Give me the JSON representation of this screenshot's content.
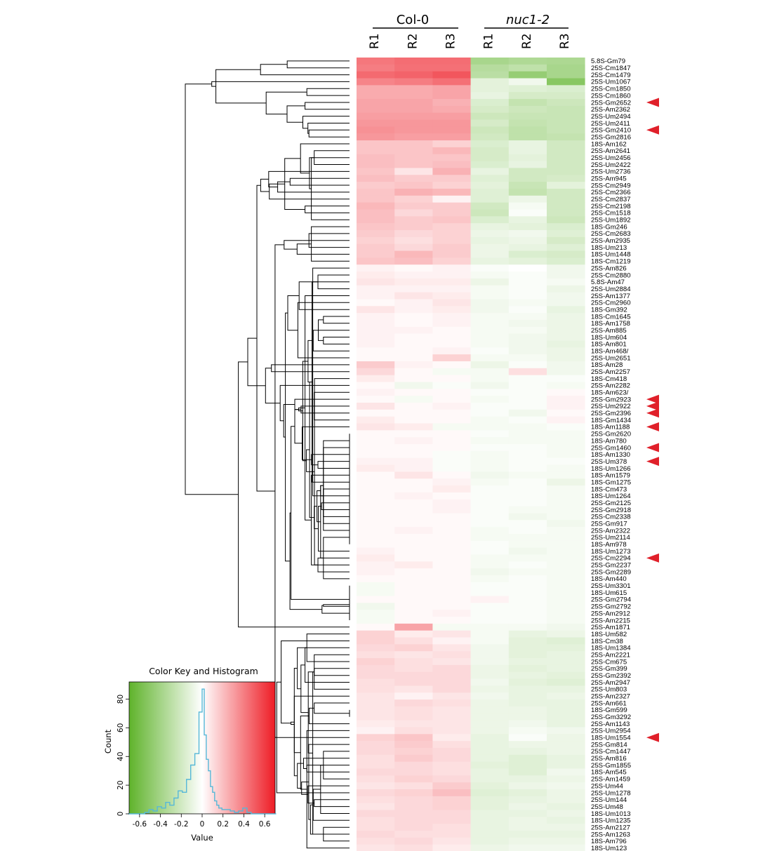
{
  "chart_data": {
    "type": "heatmap",
    "groups": [
      {
        "name": "Col-0",
        "italic": false
      },
      {
        "name": "nuc1-2",
        "italic": true
      }
    ],
    "columns": [
      "R1",
      "R2",
      "R3",
      "R1",
      "R2",
      "R3"
    ],
    "rows": [
      "5.8S-Gm79",
      "25S-Cm1847",
      "25S-Cm1479",
      "25S-Um1067",
      "25S-Cm1850",
      "25S-Cm1860",
      "25S-Gm2652",
      "25S-Am2362",
      "25S-Um2494",
      "25S-Um2411",
      "25S-Gm2410",
      "25S-Gm2816",
      "18S-Am162",
      "25S-Am2641",
      "25S-Um2456",
      "25S-Um2422",
      "25S-Um2736",
      "25S-Am945",
      "25S-Cm2949",
      "25S-Cm2366",
      "25S-Cm2837",
      "25S-Cm2198",
      "25S-Cm1518",
      "25S-Um1892",
      "18S-Gm246",
      "25S-Cm2683",
      "25S-Am2935",
      "18S-Um213",
      "18S-Um1448",
      "18S-Cm1219",
      "25S-Am826",
      "25S-Cm2880",
      "5.8S-Am47",
      "25S-Um2884",
      "25S-Am1377",
      "25S-Cm2960",
      "18S-Gm392",
      "18S-Cm1645",
      "18S-Am1758",
      "25S-Am885",
      "18S-Um604",
      "18S-Am801",
      "18S-Am468/",
      "25S-Um2651",
      "18S-Am28",
      "25S-Am2257",
      "18S-Cm418",
      "25S-Am2282",
      "18S-Am623/",
      "25S-Gm2923",
      "25S-Um2922",
      "25S-Gm2396",
      "18S-Gm1434",
      "18S-Am1188",
      "25S-Gm2620",
      "18S-Am780",
      "25S-Gm1460",
      "18S-Am1330",
      "25S-Um378",
      "18S-Um1266",
      "18S-Am1579",
      "18S-Gm1275",
      "18S-Cm473",
      "18S-Um1264",
      "25S-Gm2125",
      "25S-Gm2918",
      "25S-Cm2338",
      "25S-Gm917",
      "25S-Am2322",
      "25S-Um2114",
      "18S-Am978",
      "18S-Um1273",
      "25S-Cm2294",
      "25S-Gm2237",
      "25S-Gm2289",
      "18S-Am440",
      "25S-Um3301",
      "18S-Um615",
      "25S-Gm2794",
      "25S-Gm2792",
      "25S-Am2912",
      "25S-Am2215",
      "25S-Am1871",
      "18S-Um582",
      "18S-Cm38",
      "18S-Um1384",
      "25S-Am2221",
      "25S-Cm675",
      "25S-Gm399",
      "25S-Gm2392",
      "25S-Am2947",
      "25S-Um803",
      "25S-Am2327",
      "25S-Am661",
      "18S-Gm599",
      "25S-Gm3292",
      "25S-Am1143",
      "25S-Um2954",
      "18S-Um1554",
      "25S-Gm814",
      "25S-Cm1447",
      "25S-Am816",
      "25S-Gm1855",
      "18S-Am545",
      "25S-Am1459",
      "25S-Um44",
      "25S-Um1278",
      "25S-Um144",
      "25S-Um48",
      "18S-Um1013",
      "18S-Um1235",
      "25S-Am2127",
      "25S-Am1263",
      "18S-Am796",
      "18S-Um123"
    ],
    "values": [
      [
        0.42,
        0.45,
        0.45,
        -0.38,
        -0.35,
        -0.36
      ],
      [
        0.4,
        0.44,
        0.44,
        -0.32,
        -0.28,
        -0.38
      ],
      [
        0.46,
        0.48,
        0.52,
        -0.3,
        -0.46,
        -0.38
      ],
      [
        0.38,
        0.4,
        0.44,
        -0.12,
        -0.06,
        -0.52
      ],
      [
        0.26,
        0.26,
        0.28,
        -0.12,
        -0.14,
        -0.16
      ],
      [
        0.26,
        0.26,
        0.28,
        -0.1,
        -0.18,
        -0.18
      ],
      [
        0.28,
        0.28,
        0.24,
        -0.16,
        -0.26,
        -0.22
      ],
      [
        0.28,
        0.28,
        0.26,
        -0.18,
        -0.22,
        -0.24
      ],
      [
        0.3,
        0.3,
        0.3,
        -0.22,
        -0.24,
        -0.24
      ],
      [
        0.32,
        0.32,
        0.32,
        -0.18,
        -0.26,
        -0.24
      ],
      [
        0.34,
        0.32,
        0.32,
        -0.22,
        -0.28,
        -0.24
      ],
      [
        0.32,
        0.3,
        0.3,
        -0.2,
        -0.28,
        -0.26
      ],
      [
        0.18,
        0.18,
        0.14,
        -0.16,
        -0.1,
        -0.2
      ],
      [
        0.18,
        0.18,
        0.22,
        -0.18,
        -0.1,
        -0.2
      ],
      [
        0.2,
        0.18,
        0.18,
        -0.18,
        -0.12,
        -0.2
      ],
      [
        0.2,
        0.18,
        0.2,
        -0.16,
        -0.1,
        -0.2
      ],
      [
        0.18,
        0.08,
        0.24,
        -0.1,
        -0.2,
        -0.2
      ],
      [
        0.2,
        0.16,
        0.16,
        -0.14,
        -0.2,
        -0.18
      ],
      [
        0.16,
        0.18,
        0.14,
        -0.12,
        -0.24,
        -0.12
      ],
      [
        0.18,
        0.24,
        0.22,
        -0.14,
        -0.26,
        -0.2
      ],
      [
        0.18,
        0.14,
        0.04,
        -0.14,
        -0.08,
        -0.2
      ],
      [
        0.22,
        0.16,
        0.16,
        -0.2,
        -0.04,
        -0.2
      ],
      [
        0.2,
        0.12,
        0.16,
        -0.22,
        -0.02,
        -0.2
      ],
      [
        0.2,
        0.16,
        0.18,
        -0.16,
        -0.1,
        -0.22
      ],
      [
        0.18,
        0.16,
        0.14,
        -0.1,
        -0.12,
        -0.16
      ],
      [
        0.16,
        0.12,
        0.14,
        -0.08,
        -0.06,
        -0.14
      ],
      [
        0.14,
        0.1,
        0.14,
        -0.1,
        -0.08,
        -0.18
      ],
      [
        0.16,
        0.12,
        0.16,
        -0.08,
        -0.1,
        -0.14
      ],
      [
        0.16,
        0.22,
        0.16,
        -0.08,
        -0.16,
        -0.18
      ],
      [
        0.18,
        0.2,
        0.14,
        -0.1,
        -0.12,
        -0.16
      ],
      [
        0.04,
        0.02,
        0.04,
        -0.02,
        0.0,
        -0.06
      ],
      [
        0.06,
        0.04,
        0.04,
        -0.04,
        -0.02,
        -0.06
      ],
      [
        0.08,
        0.06,
        0.06,
        -0.08,
        -0.02,
        -0.04
      ],
      [
        0.04,
        0.04,
        0.04,
        -0.04,
        -0.02,
        -0.08
      ],
      [
        0.04,
        0.08,
        0.06,
        -0.04,
        -0.02,
        -0.06
      ],
      [
        0.02,
        0.04,
        0.08,
        -0.06,
        -0.04,
        -0.06
      ],
      [
        0.08,
        0.04,
        0.06,
        -0.06,
        -0.02,
        -0.1
      ],
      [
        0.04,
        0.02,
        0.04,
        -0.04,
        -0.04,
        -0.08
      ],
      [
        0.04,
        0.02,
        0.04,
        -0.04,
        -0.06,
        -0.08
      ],
      [
        0.04,
        0.04,
        0.02,
        -0.04,
        -0.04,
        -0.08
      ],
      [
        0.04,
        0.02,
        0.02,
        -0.04,
        -0.06,
        -0.08
      ],
      [
        0.04,
        0.02,
        0.02,
        -0.04,
        -0.06,
        -0.1
      ],
      [
        0.02,
        0.02,
        0.04,
        -0.02,
        -0.06,
        -0.08
      ],
      [
        0.02,
        0.02,
        0.14,
        -0.04,
        -0.04,
        -0.08
      ],
      [
        0.16,
        0.04,
        0.02,
        -0.08,
        -0.02,
        -0.06
      ],
      [
        0.12,
        0.02,
        -0.04,
        -0.04,
        0.1,
        -0.06
      ],
      [
        0.06,
        0.02,
        0.02,
        -0.04,
        -0.02,
        -0.02
      ],
      [
        0.02,
        -0.06,
        -0.02,
        -0.06,
        -0.02,
        -0.04
      ],
      [
        0.04,
        0.02,
        0.02,
        -0.02,
        -0.02,
        0.02
      ],
      [
        0.02,
        -0.04,
        0.02,
        -0.04,
        -0.02,
        0.04
      ],
      [
        0.08,
        0.02,
        0.04,
        -0.02,
        -0.02,
        0.04
      ],
      [
        0.02,
        0.02,
        0.02,
        -0.02,
        -0.06,
        0.02
      ],
      [
        0.06,
        0.02,
        0.02,
        -0.04,
        -0.02,
        0.04
      ],
      [
        0.08,
        0.06,
        -0.04,
        -0.04,
        -0.04,
        -0.02
      ],
      [
        0.02,
        0.02,
        0.02,
        -0.02,
        -0.04,
        -0.04
      ],
      [
        0.02,
        0.04,
        0.02,
        -0.04,
        -0.04,
        -0.04
      ],
      [
        0.02,
        0.02,
        0.02,
        -0.02,
        -0.02,
        -0.04
      ],
      [
        0.02,
        0.02,
        -0.02,
        -0.04,
        -0.02,
        -0.04
      ],
      [
        0.04,
        0.04,
        -0.02,
        -0.04,
        -0.02,
        -0.02
      ],
      [
        0.06,
        0.04,
        -0.02,
        -0.04,
        -0.02,
        -0.04
      ],
      [
        0.02,
        0.08,
        0.02,
        -0.06,
        -0.04,
        -0.04
      ],
      [
        0.02,
        0.02,
        0.04,
        -0.04,
        -0.02,
        -0.08
      ],
      [
        0.02,
        0.02,
        0.06,
        -0.02,
        -0.02,
        -0.04
      ],
      [
        0.02,
        0.04,
        0.02,
        -0.02,
        -0.02,
        -0.04
      ],
      [
        0.02,
        0.02,
        0.04,
        -0.02,
        -0.02,
        -0.04
      ],
      [
        0.02,
        0.02,
        0.04,
        -0.02,
        -0.04,
        -0.04
      ],
      [
        0.02,
        0.02,
        0.02,
        -0.02,
        -0.06,
        -0.04
      ],
      [
        0.02,
        0.02,
        0.02,
        -0.02,
        -0.02,
        -0.06
      ],
      [
        0.02,
        0.04,
        0.02,
        -0.04,
        -0.02,
        -0.04
      ],
      [
        0.02,
        0.02,
        0.02,
        -0.04,
        -0.04,
        -0.04
      ],
      [
        0.02,
        0.02,
        0.02,
        -0.02,
        -0.04,
        -0.04
      ],
      [
        0.04,
        0.02,
        0.02,
        -0.02,
        -0.06,
        -0.04
      ],
      [
        0.06,
        0.02,
        0.02,
        -0.04,
        -0.04,
        -0.04
      ],
      [
        0.04,
        0.06,
        0.02,
        -0.04,
        -0.02,
        -0.04
      ],
      [
        0.04,
        0.02,
        0.02,
        -0.06,
        -0.04,
        -0.04
      ],
      [
        0.02,
        0.02,
        0.02,
        -0.04,
        -0.02,
        -0.04
      ],
      [
        -0.04,
        0.02,
        0.02,
        -0.02,
        -0.02,
        -0.04
      ],
      [
        -0.04,
        0.02,
        0.02,
        -0.02,
        -0.02,
        -0.04
      ],
      [
        0.02,
        0.02,
        0.02,
        0.04,
        -0.02,
        -0.04
      ],
      [
        -0.06,
        0.02,
        0.02,
        -0.02,
        -0.02,
        -0.04
      ],
      [
        -0.04,
        0.02,
        0.04,
        -0.02,
        -0.02,
        -0.04
      ],
      [
        -0.04,
        0.02,
        0.02,
        -0.02,
        -0.02,
        -0.04
      ],
      [
        0.02,
        0.28,
        -0.04,
        -0.04,
        -0.04,
        -0.06
      ],
      [
        0.14,
        0.06,
        0.08,
        -0.04,
        -0.1,
        -0.08
      ],
      [
        0.14,
        0.1,
        0.04,
        -0.04,
        -0.12,
        -0.14
      ],
      [
        0.12,
        0.14,
        0.08,
        -0.06,
        -0.12,
        -0.12
      ],
      [
        0.1,
        0.08,
        0.1,
        -0.06,
        -0.12,
        -0.1
      ],
      [
        0.14,
        0.1,
        0.08,
        -0.06,
        -0.1,
        -0.1
      ],
      [
        0.12,
        0.1,
        0.12,
        -0.08,
        -0.12,
        -0.1
      ],
      [
        0.12,
        0.12,
        0.12,
        -0.08,
        -0.1,
        -0.12
      ],
      [
        0.1,
        0.12,
        0.12,
        -0.06,
        -0.12,
        -0.14
      ],
      [
        0.1,
        0.08,
        0.12,
        -0.08,
        -0.1,
        -0.1
      ],
      [
        0.08,
        0.04,
        0.08,
        -0.06,
        -0.1,
        -0.08
      ],
      [
        0.08,
        0.12,
        0.1,
        -0.08,
        -0.1,
        -0.1
      ],
      [
        0.08,
        0.1,
        0.08,
        -0.08,
        -0.08,
        -0.1
      ],
      [
        0.08,
        0.1,
        0.08,
        -0.08,
        -0.08,
        -0.1
      ],
      [
        0.06,
        0.08,
        0.08,
        -0.08,
        -0.06,
        -0.1
      ],
      [
        0.04,
        0.1,
        0.08,
        -0.08,
        -0.04,
        -0.06
      ],
      [
        0.14,
        0.18,
        0.06,
        -0.1,
        -0.02,
        -0.08
      ],
      [
        0.12,
        0.16,
        0.1,
        -0.1,
        -0.08,
        -0.08
      ],
      [
        0.12,
        0.14,
        0.12,
        -0.1,
        -0.1,
        -0.08
      ],
      [
        0.1,
        0.16,
        0.12,
        -0.1,
        -0.14,
        -0.1
      ],
      [
        0.1,
        0.12,
        0.1,
        -0.12,
        -0.14,
        -0.1
      ],
      [
        0.12,
        0.12,
        0.1,
        -0.1,
        -0.14,
        -0.06
      ],
      [
        0.1,
        0.14,
        0.12,
        -0.1,
        -0.1,
        -0.08
      ],
      [
        0.08,
        0.1,
        0.16,
        -0.12,
        -0.08,
        -0.06
      ],
      [
        0.12,
        0.14,
        0.2,
        -0.14,
        -0.12,
        -0.08
      ],
      [
        0.1,
        0.12,
        0.14,
        -0.12,
        -0.1,
        -0.08
      ],
      [
        0.08,
        0.12,
        0.14,
        -0.12,
        -0.08,
        -0.1
      ],
      [
        0.12,
        0.12,
        0.12,
        -0.1,
        -0.1,
        -0.08
      ],
      [
        0.1,
        0.12,
        0.12,
        -0.1,
        -0.08,
        -0.1
      ],
      [
        0.1,
        0.12,
        0.1,
        -0.1,
        -0.08,
        -0.08
      ],
      [
        0.12,
        0.1,
        0.1,
        -0.1,
        -0.1,
        -0.1
      ],
      [
        0.1,
        0.12,
        0.08,
        -0.1,
        -0.08,
        -0.08
      ],
      [
        0.08,
        0.1,
        0.06,
        -0.08,
        -0.06,
        -0.06
      ]
    ],
    "marked_rows": [
      "25S-Gm2652",
      "25S-Gm2410",
      "25S-Gm2923",
      "25S-Um2922",
      "25S-Gm2396",
      "18S-Am1188",
      "25S-Gm1460",
      "25S-Um378",
      "25S-Cm2294",
      "18S-Um1554"
    ],
    "marker_color": "#e0202a",
    "color_scale": {
      "min": -0.7,
      "max": 0.7,
      "low": "#5fb32b",
      "mid": "#ffffff",
      "high": "#ee1c25"
    },
    "key": {
      "title": "Color Key and Histogram",
      "xlabel": "Value",
      "ylabel": "Count",
      "x_ticks": [
        "-0.6",
        "-0.4",
        "-0.2",
        "0",
        "0.2",
        "0.4",
        "0.6"
      ],
      "x_tick_values": [
        -0.6,
        -0.4,
        -0.2,
        0,
        0.2,
        0.4,
        0.6
      ],
      "y_ticks": [
        "0",
        "20",
        "40",
        "60",
        "80"
      ],
      "y_tick_values": [
        0,
        20,
        40,
        60,
        80
      ],
      "ylim": [
        0,
        92
      ],
      "xlim": [
        -0.7,
        0.7
      ],
      "hist_color": "#56b8d8",
      "histogram": {
        "bin_centers": [
          -0.69,
          -0.65,
          -0.61,
          -0.57,
          -0.53,
          -0.49,
          -0.45,
          -0.41,
          -0.37,
          -0.33,
          -0.29,
          -0.25,
          -0.21,
          -0.17,
          -0.13,
          -0.09,
          -0.05,
          -0.01,
          0.01,
          0.03,
          0.05,
          0.07,
          0.09,
          0.11,
          0.13,
          0.15,
          0.17,
          0.21,
          0.25,
          0.29,
          0.33,
          0.37,
          0.41,
          0.45,
          0.49,
          0.53,
          0.57,
          0.61,
          0.65,
          0.69
        ],
        "counts": [
          0,
          0,
          0,
          0,
          1,
          3,
          2,
          5,
          4,
          8,
          6,
          11,
          16,
          15,
          24,
          34,
          42,
          71,
          87,
          55,
          38,
          30,
          19,
          15,
          9,
          6,
          4,
          3,
          3,
          2,
          1,
          2,
          4,
          1,
          0,
          0,
          0,
          0,
          0,
          0
        ]
      }
    }
  }
}
